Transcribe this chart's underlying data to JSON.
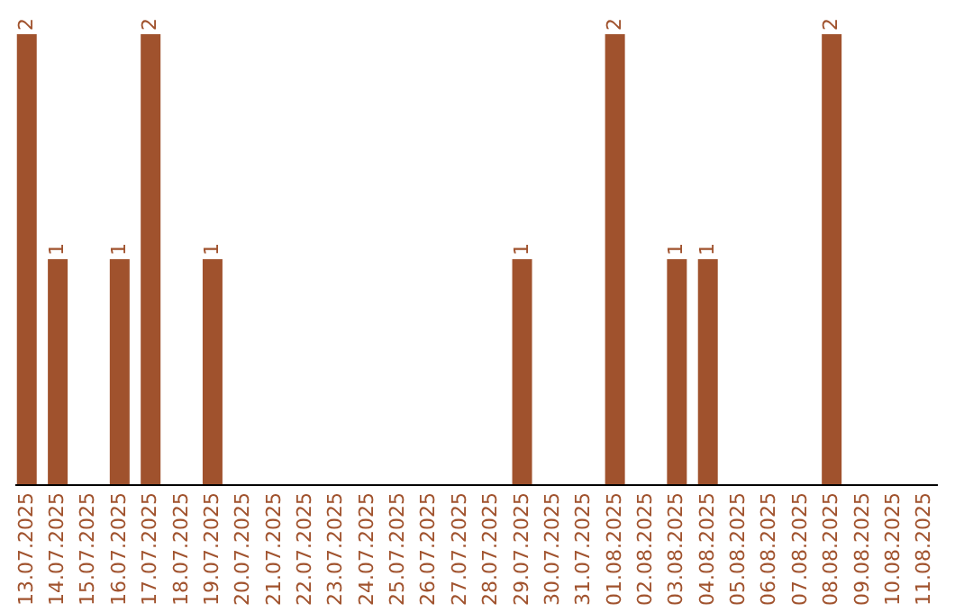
{
  "chart_data": {
    "type": "bar",
    "categories": [
      "13.07.2025",
      "14.07.2025",
      "15.07.2025",
      "16.07.2025",
      "17.07.2025",
      "18.07.2025",
      "19.07.2025",
      "20.07.2025",
      "21.07.2025",
      "22.07.2025",
      "23.07.2025",
      "24.07.2025",
      "25.07.2025",
      "26.07.2025",
      "27.07.2025",
      "28.07.2025",
      "29.07.2025",
      "30.07.2025",
      "31.07.2025",
      "01.08.2025",
      "02.08.2025",
      "03.08.2025",
      "04.08.2025",
      "05.08.2025",
      "06.08.2025",
      "07.08.2025",
      "08.08.2025",
      "09.08.2025",
      "10.08.2025",
      "11.08.2025"
    ],
    "values": [
      2,
      1,
      0,
      1,
      2,
      0,
      1,
      0,
      0,
      0,
      0,
      0,
      0,
      0,
      0,
      0,
      1,
      0,
      0,
      2,
      0,
      1,
      1,
      0,
      0,
      0,
      2,
      0,
      0,
      0
    ],
    "value_labels": [
      "2",
      "1",
      null,
      "1",
      "2",
      null,
      "1",
      null,
      null,
      null,
      null,
      null,
      null,
      null,
      null,
      null,
      "1",
      null,
      null,
      "2",
      null,
      "1",
      "1",
      null,
      null,
      null,
      "2",
      null,
      null,
      null
    ],
    "color": "#a0522d"
  }
}
